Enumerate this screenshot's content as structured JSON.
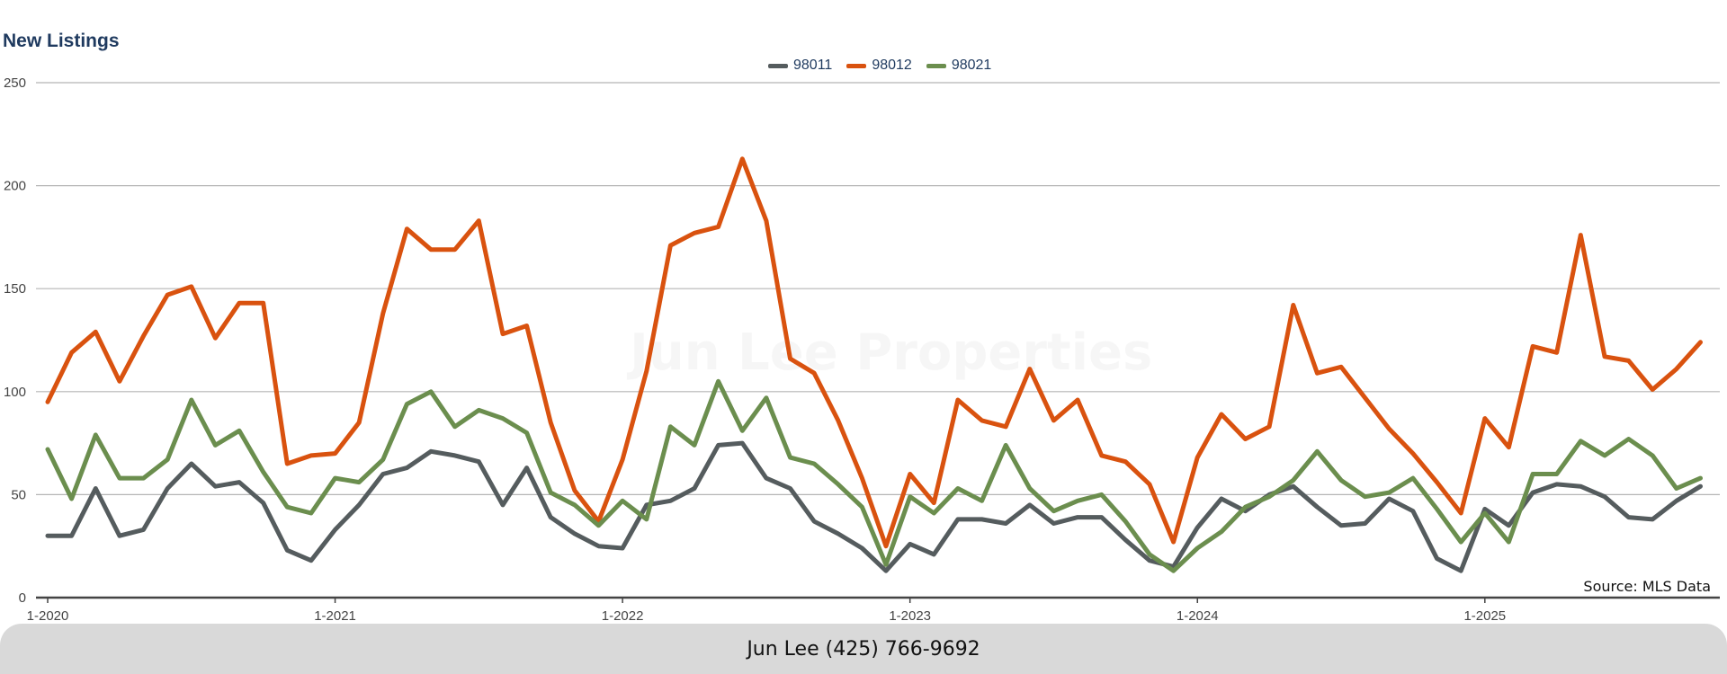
{
  "chart_data": {
    "type": "line",
    "title": "New Listings",
    "x_start": "1-2020",
    "x_labels": [
      "1-2020",
      "1-2021",
      "1-2022",
      "1-2023",
      "1-2024",
      "1-2025"
    ],
    "ylim": [
      0,
      250
    ],
    "yticks": [
      0,
      50,
      100,
      150,
      200,
      250
    ],
    "grid": true,
    "legend_position": "top-center",
    "series": [
      {
        "name": "98011",
        "color": "#555c5e",
        "values": [
          30,
          30,
          53,
          30,
          33,
          53,
          65,
          54,
          56,
          46,
          23,
          18,
          33,
          45,
          60,
          63,
          71,
          69,
          66,
          45,
          63,
          39,
          31,
          25,
          24,
          45,
          47,
          53,
          74,
          75,
          58,
          53,
          37,
          31,
          24,
          13,
          26,
          21,
          38,
          38,
          36,
          45,
          36,
          39,
          39,
          28,
          18,
          15,
          34,
          48,
          42,
          50,
          54,
          44,
          35,
          36,
          48,
          42,
          19,
          13,
          43,
          35,
          51,
          55,
          54,
          49,
          39,
          38,
          47,
          54
        ]
      },
      {
        "name": "98012",
        "color": "#d9520f",
        "values": [
          95,
          119,
          129,
          105,
          127,
          147,
          151,
          126,
          143,
          143,
          65,
          69,
          70,
          85,
          138,
          179,
          169,
          169,
          183,
          128,
          132,
          85,
          52,
          37,
          67,
          110,
          171,
          177,
          180,
          213,
          183,
          116,
          109,
          86,
          58,
          25,
          60,
          46,
          96,
          86,
          83,
          111,
          86,
          96,
          69,
          66,
          55,
          27,
          68,
          89,
          77,
          83,
          142,
          109,
          112,
          97,
          82,
          70,
          56,
          41,
          87,
          73,
          122,
          119,
          176,
          117,
          115,
          101,
          111,
          124
        ]
      },
      {
        "name": "98021",
        "color": "#6b8e4e",
        "values": [
          72,
          48,
          79,
          58,
          58,
          67,
          96,
          74,
          81,
          61,
          44,
          41,
          58,
          56,
          67,
          94,
          100,
          83,
          91,
          87,
          80,
          51,
          45,
          35,
          47,
          38,
          83,
          74,
          105,
          81,
          97,
          68,
          65,
          55,
          44,
          16,
          49,
          41,
          53,
          47,
          74,
          53,
          42,
          47,
          50,
          37,
          21,
          13,
          24,
          32,
          44,
          49,
          57,
          71,
          57,
          49,
          51,
          58,
          43,
          27,
          41,
          27,
          60,
          60,
          76,
          69,
          77,
          69,
          53,
          58
        ]
      }
    ]
  },
  "source_text": "Source: MLS Data",
  "watermark_text": "Jun Lee Properties",
  "footer_text": "Jun Lee (425) 766-9692"
}
